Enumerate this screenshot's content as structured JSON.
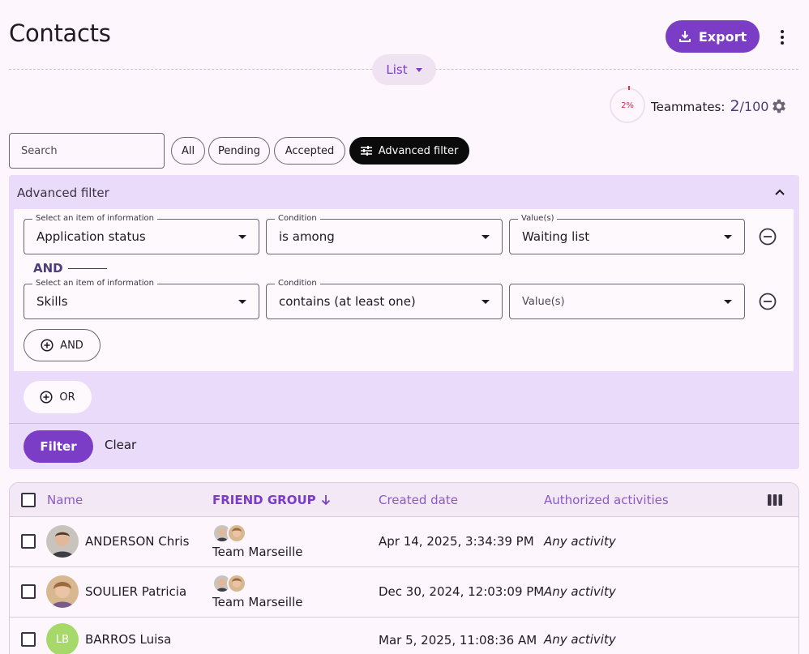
{
  "header": {
    "title": "Contacts",
    "export_label": "Export",
    "view_label": "List"
  },
  "quota": {
    "percent_label": "2%",
    "teammates_label": "Teammates:",
    "used": "2",
    "total": "/100"
  },
  "filters": {
    "search_placeholder": "Search",
    "chips": [
      "All",
      "Pending",
      "Accepted"
    ],
    "advanced_label": "Advanced filter"
  },
  "advanced": {
    "title": "Advanced filter",
    "rows": [
      {
        "item_legend": "Select an item of information",
        "item_value": "Application status",
        "condition_legend": "Condition",
        "condition_value": "is among",
        "values_legend": "Value(s)",
        "values_value": "Waiting list"
      },
      {
        "item_legend": "Select an item of information",
        "item_value": "Skills",
        "condition_legend": "Condition",
        "condition_value": "contains (at least one)",
        "values_placeholder": "Value(s)"
      }
    ],
    "and_label": "AND",
    "add_and_label": "AND",
    "add_or_label": "OR",
    "filter_label": "Filter",
    "clear_label": "Clear"
  },
  "table": {
    "columns": [
      "Name",
      "FRIEND GROUP",
      "Created date",
      "Authorized activities"
    ],
    "rows": [
      {
        "name": "ANDERSON Chris",
        "group": "Team Marseille",
        "created": "Apr 14, 2025, 3:34:39 PM",
        "activities": "Any activity"
      },
      {
        "name": "SOULIER Patricia",
        "group": "Team Marseille",
        "created": "Dec 30, 2024, 12:03:09 PM",
        "activities": "Any activity"
      },
      {
        "name": "BARROS Luisa",
        "initials": "LB",
        "group": "",
        "created": "Mar 5, 2025, 11:08:36 AM",
        "activities": "Any activity"
      }
    ]
  },
  "colors": {
    "accent": "#7b3dc6",
    "panel": "#eadbfa",
    "background": "#fdf6fd"
  }
}
